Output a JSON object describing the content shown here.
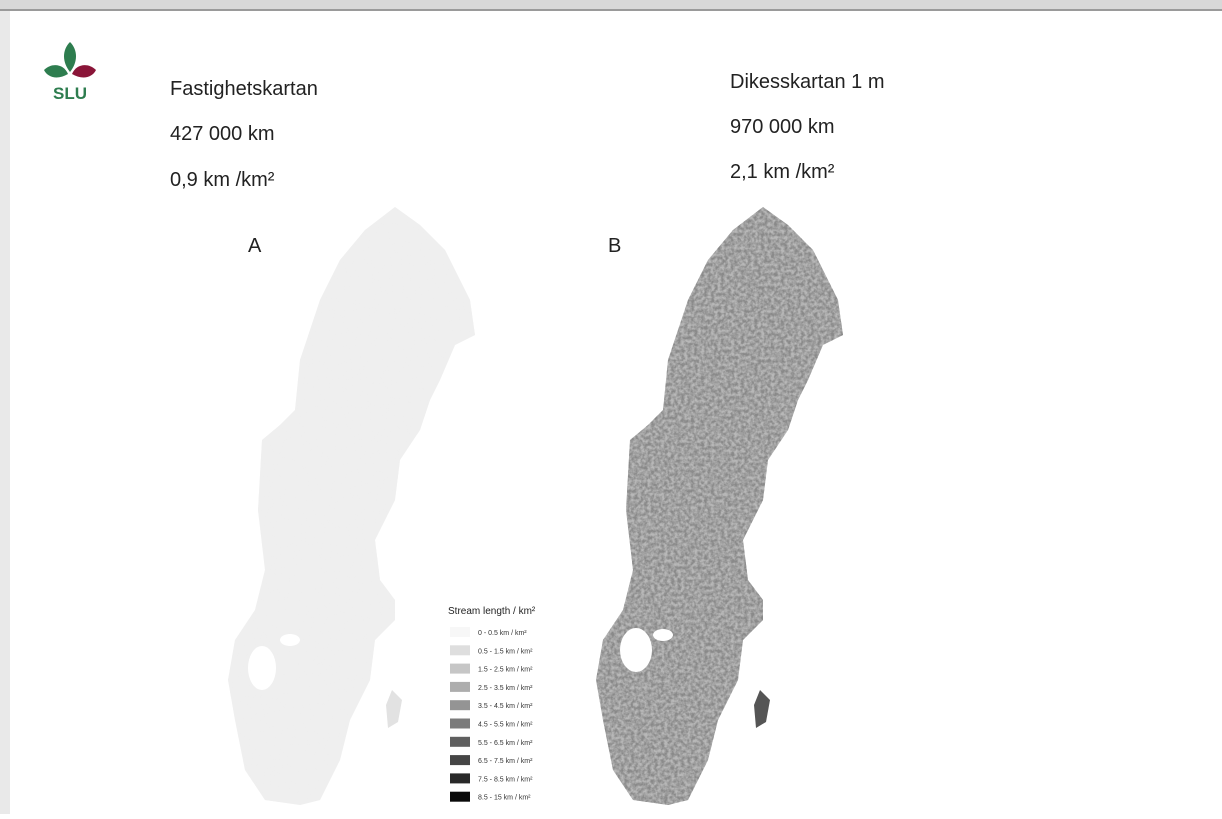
{
  "logo": {
    "text": "SLU"
  },
  "panels": [
    {
      "title": "Fastighetskartan",
      "length": "427 000 km",
      "density": "0,9 km /km²",
      "label": "A"
    },
    {
      "title": "Dikesskartan 1 m",
      "length": "970 000 km",
      "density": "2,1 km /km²",
      "label": "B"
    }
  ],
  "legend": {
    "title": "Stream length / km²",
    "items": [
      {
        "label": "0 - 0.5 km / km²",
        "color": "#f7f7f7"
      },
      {
        "label": "0.5 - 1.5 km / km²",
        "color": "#dedede"
      },
      {
        "label": "1.5 - 2.5 km / km²",
        "color": "#c6c6c6"
      },
      {
        "label": "2.5 - 3.5 km / km²",
        "color": "#adadad"
      },
      {
        "label": "3.5 - 4.5 km / km²",
        "color": "#949494"
      },
      {
        "label": "4.5 - 5.5 km / km²",
        "color": "#7b7b7b"
      },
      {
        "label": "5.5 - 6.5 km / km²",
        "color": "#5f5f5f"
      },
      {
        "label": "6.5 - 7.5 km / km²",
        "color": "#454545"
      },
      {
        "label": "7.5 - 8.5 km / km²",
        "color": "#292929"
      },
      {
        "label": "8.5 - 15 km / km²",
        "color": "#0a0a0a"
      }
    ]
  }
}
